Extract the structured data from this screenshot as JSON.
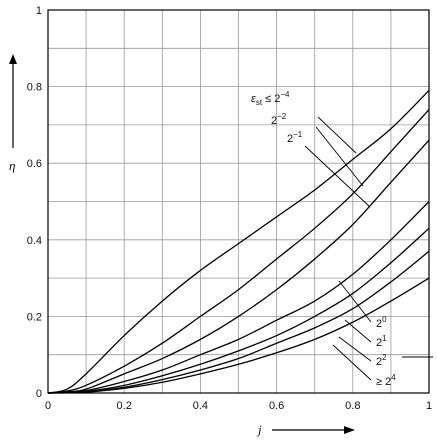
{
  "chart_data": {
    "type": "line",
    "xlabel": "j",
    "ylabel": "η",
    "xlim": [
      0,
      1
    ],
    "ylim": [
      0,
      1
    ],
    "grid": true,
    "x_ticks": [
      "0",
      "0.2",
      "0.4",
      "0.6",
      "0.8",
      "1"
    ],
    "y_ticks": [
      "0",
      "0.2",
      "0.4",
      "0.6",
      "0.8",
      "1"
    ],
    "series": [
      {
        "name": "εst ≤ 2−4",
        "label_parts": {
          "sym": "ε",
          "sub": "st",
          "rel": " ≤ 2",
          "sup": "−4"
        },
        "x": [
          0,
          0.05,
          0.1,
          0.2,
          0.3,
          0.4,
          0.5,
          0.6,
          0.7,
          0.8,
          0.9,
          1.0
        ],
        "y": [
          0,
          0.01,
          0.05,
          0.15,
          0.24,
          0.32,
          0.39,
          0.46,
          0.53,
          0.61,
          0.69,
          0.79
        ]
      },
      {
        "name": "2−2",
        "label_parts": {
          "sym": "",
          "sub": "",
          "rel": "2",
          "sup": "−2"
        },
        "x": [
          0,
          0.05,
          0.1,
          0.2,
          0.3,
          0.4,
          0.5,
          0.6,
          0.7,
          0.8,
          0.9,
          1.0
        ],
        "y": [
          0,
          0.005,
          0.02,
          0.07,
          0.13,
          0.2,
          0.27,
          0.35,
          0.43,
          0.52,
          0.63,
          0.74
        ]
      },
      {
        "name": "2−1",
        "label_parts": {
          "sym": "",
          "sub": "",
          "rel": "2",
          "sup": "−1"
        },
        "x": [
          0,
          0.05,
          0.1,
          0.2,
          0.3,
          0.4,
          0.5,
          0.6,
          0.7,
          0.8,
          0.9,
          1.0
        ],
        "y": [
          0,
          0.003,
          0.01,
          0.05,
          0.09,
          0.14,
          0.2,
          0.27,
          0.35,
          0.44,
          0.55,
          0.66
        ]
      },
      {
        "name": "20",
        "label_parts": {
          "sym": "",
          "sub": "",
          "rel": "2",
          "sup": "0"
        },
        "x": [
          0,
          0.05,
          0.1,
          0.2,
          0.3,
          0.4,
          0.5,
          0.6,
          0.7,
          0.8,
          0.9,
          1.0
        ],
        "y": [
          0,
          0.002,
          0.006,
          0.03,
          0.06,
          0.1,
          0.14,
          0.19,
          0.24,
          0.31,
          0.4,
          0.5
        ]
      },
      {
        "name": "21",
        "label_parts": {
          "sym": "",
          "sub": "",
          "rel": "2",
          "sup": "1"
        },
        "x": [
          0,
          0.05,
          0.1,
          0.2,
          0.3,
          0.4,
          0.5,
          0.6,
          0.7,
          0.8,
          0.9,
          1.0
        ],
        "y": [
          0,
          0.001,
          0.004,
          0.02,
          0.045,
          0.075,
          0.11,
          0.15,
          0.2,
          0.26,
          0.34,
          0.43
        ]
      },
      {
        "name": "22",
        "label_parts": {
          "sym": "",
          "sub": "",
          "rel": "2",
          "sup": "2"
        },
        "x": [
          0,
          0.05,
          0.1,
          0.2,
          0.3,
          0.4,
          0.5,
          0.6,
          0.7,
          0.8,
          0.9,
          1.0
        ],
        "y": [
          0,
          0.001,
          0.003,
          0.015,
          0.035,
          0.06,
          0.09,
          0.13,
          0.17,
          0.22,
          0.29,
          0.37
        ]
      },
      {
        "name": "≥ 24",
        "label_parts": {
          "sym": "",
          "sub": "",
          "rel": "≥ 2",
          "sup": "4"
        },
        "x": [
          0,
          0.05,
          0.1,
          0.2,
          0.3,
          0.4,
          0.5,
          0.6,
          0.7,
          0.8,
          0.9,
          1.0
        ],
        "y": [
          0,
          0.0005,
          0.002,
          0.012,
          0.028,
          0.05,
          0.075,
          0.105,
          0.14,
          0.185,
          0.24,
          0.3
        ]
      }
    ]
  }
}
